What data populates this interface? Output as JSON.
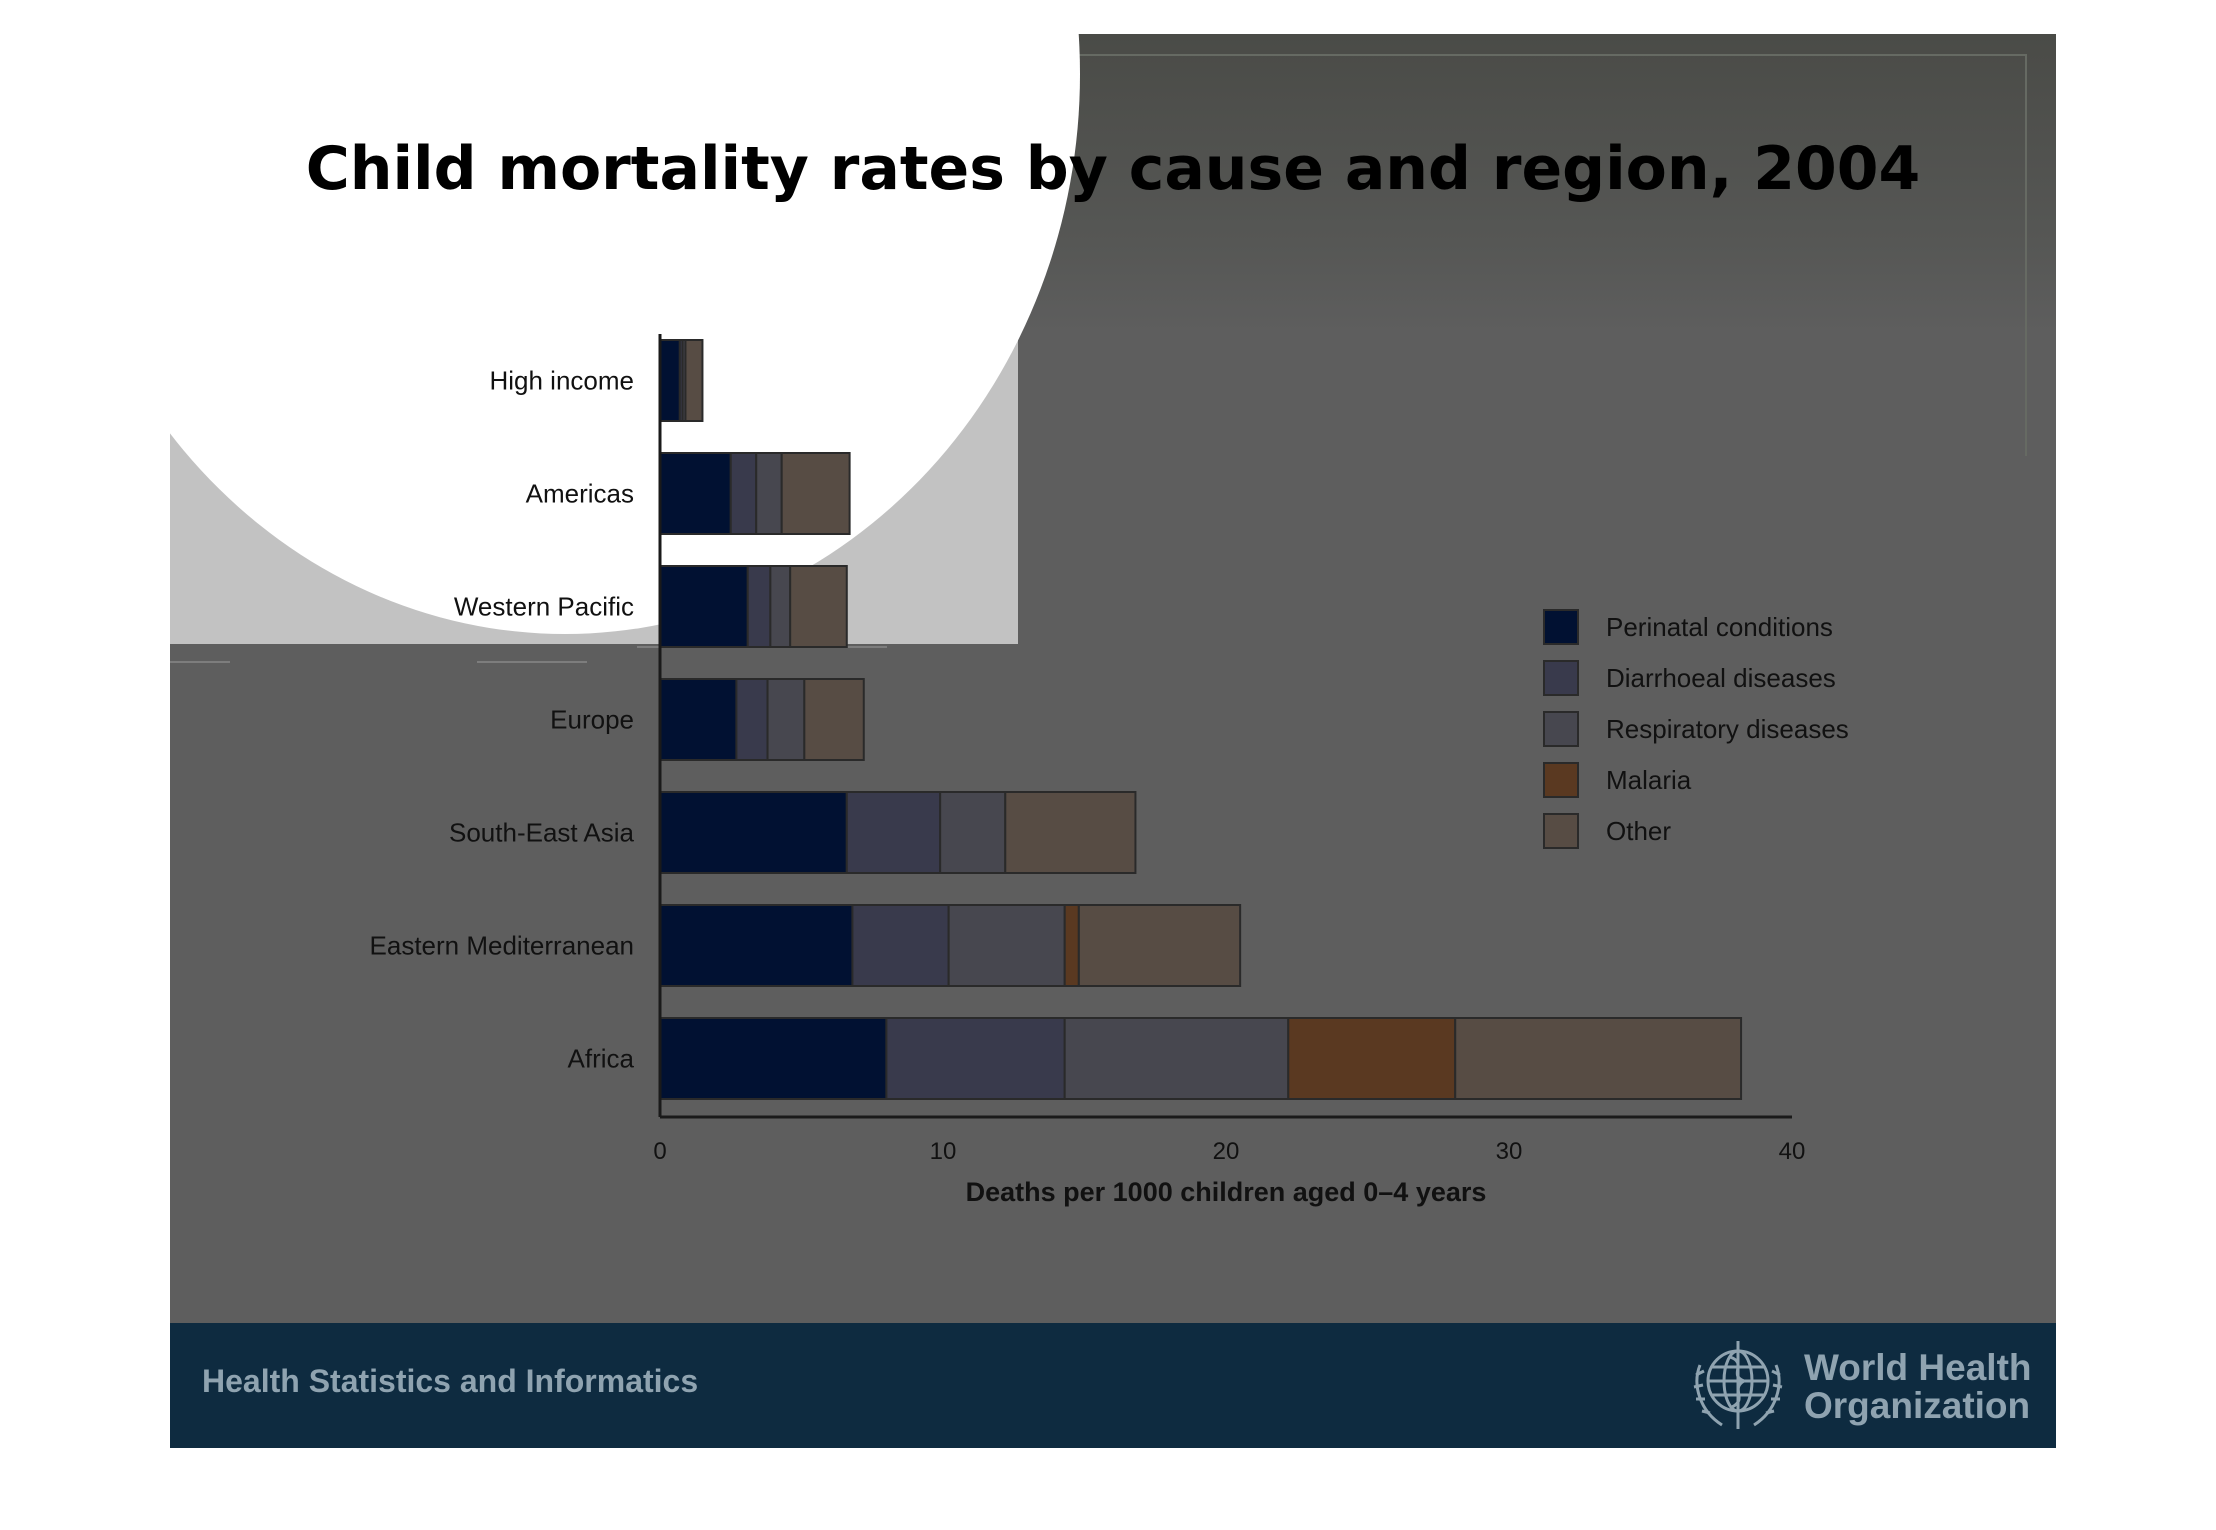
{
  "chart_data": {
    "type": "bar",
    "orientation": "horizontal",
    "stacked": true,
    "title": "Child mortality rates by cause and region, 2004",
    "xlabel": "Deaths per 1000 children aged 0–4 years",
    "ylabel": "",
    "xlim": [
      0,
      40
    ],
    "xticks": [
      0,
      10,
      20,
      30,
      40
    ],
    "grid": false,
    "legend_position": "right",
    "categories": [
      "High income",
      "Americas",
      "Western Pacific",
      "Europe",
      "South-East Asia",
      "Eastern Mediterranean",
      "Africa"
    ],
    "series": [
      {
        "name": "Perinatal conditions",
        "color": "#011132",
        "values": [
          0.7,
          2.5,
          3.1,
          2.7,
          6.6,
          6.8,
          8.0
        ]
      },
      {
        "name": "Diarrhoeal diseases",
        "color": "#393a4c",
        "values": [
          0.1,
          0.9,
          0.8,
          1.1,
          3.3,
          3.4,
          6.3
        ]
      },
      {
        "name": "Respiratory diseases",
        "color": "#47474f",
        "values": [
          0.1,
          0.9,
          0.7,
          1.3,
          2.3,
          4.1,
          7.9
        ]
      },
      {
        "name": "Malaria",
        "color": "#5a3921",
        "values": [
          0.0,
          0.0,
          0.0,
          0.0,
          0.0,
          0.5,
          5.9
        ]
      },
      {
        "name": "Other",
        "color": "#574c44",
        "values": [
          0.6,
          2.4,
          2.0,
          2.1,
          4.6,
          5.7,
          10.1
        ]
      }
    ]
  },
  "footer": {
    "left_text": "Health Statistics and Informatics",
    "org_line1": "World Health",
    "org_line2": "Organization"
  }
}
